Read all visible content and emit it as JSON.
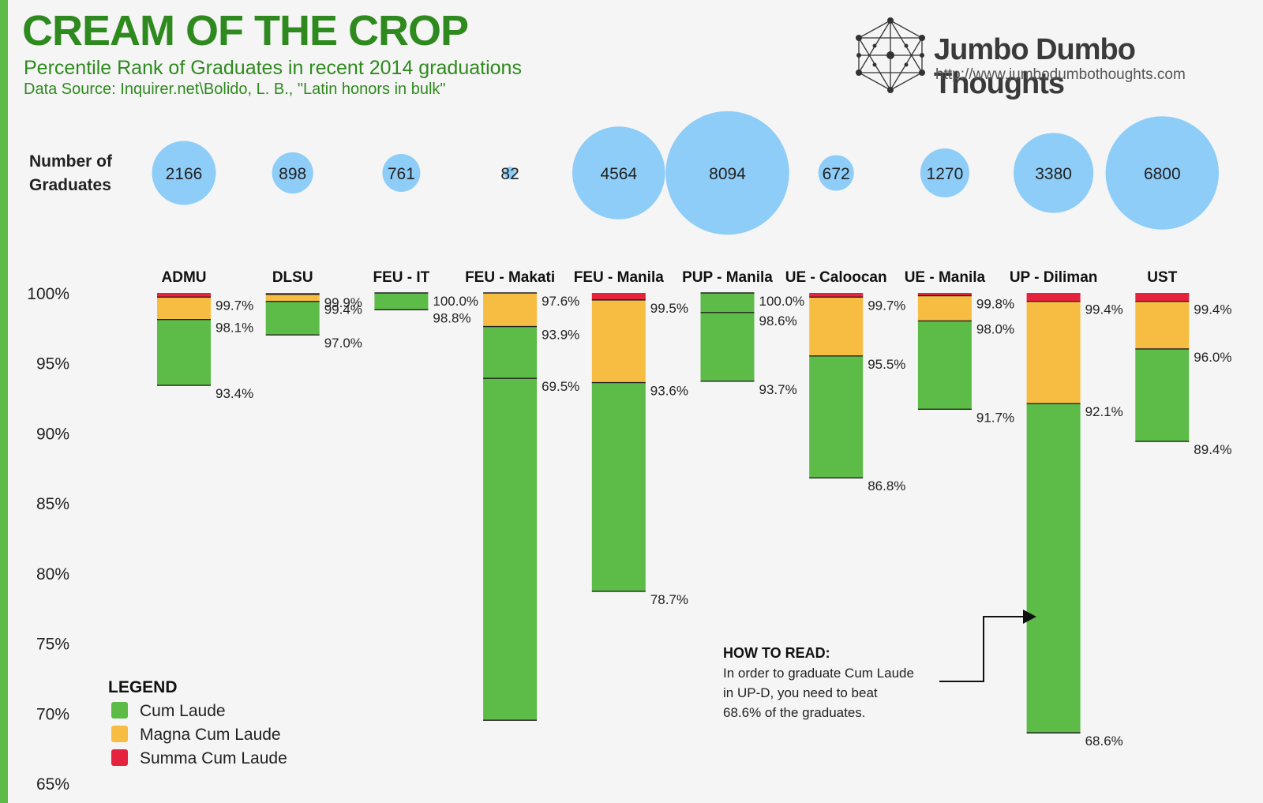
{
  "header": {
    "title": "CREAM OF THE CROP",
    "subtitle": "Percentile Rank of Graduates in recent 2014 graduations",
    "source": "Data Source: Inquirer.net\\Bolido, L. B., \"Latin honors in bulk\""
  },
  "brand": {
    "name": "Jumbo Dumbo Thoughts",
    "url": "http://www.jumbodumbothoughts.com"
  },
  "graduates_label": [
    "Number of",
    "Graduates"
  ],
  "legend": {
    "title": "LEGEND",
    "items": [
      {
        "label": "Cum Laude",
        "color": "#5dbb47"
      },
      {
        "label": "Magna Cum Laude",
        "color": "#f7bd43"
      },
      {
        "label": "Summa Cum Laude",
        "color": "#e5233f"
      }
    ]
  },
  "annotation": {
    "title": "HOW TO READ:",
    "lines": [
      "In order to graduate Cum Laude",
      " in UP-D, you need to beat",
      "68.6% of the graduates."
    ]
  },
  "chart_data": {
    "type": "floating-bar",
    "ylim": [
      65,
      100
    ],
    "yticks": [
      "100%",
      "95%",
      "90%",
      "85%",
      "80%",
      "75%",
      "70%",
      "65%"
    ],
    "bubble_color": "#8ecdf8",
    "schools": [
      {
        "name": "ADMU",
        "graduates": "2166",
        "summa": 99.7,
        "magna": 98.1,
        "cum": 93.4,
        "labels": [
          "99.7%",
          "98.1%",
          "93.4%"
        ]
      },
      {
        "name": "DLSU",
        "graduates": "898",
        "summa": 99.9,
        "magna": 99.4,
        "cum": 97.0,
        "labels": [
          "99.9%",
          "99.4%",
          "97.0%"
        ]
      },
      {
        "name": "FEU - IT",
        "graduates": "761",
        "summa": null,
        "magna": 100.0,
        "cum": 98.8,
        "labels": [
          "100.0%",
          "98.8%"
        ]
      },
      {
        "name": "FEU - Makati",
        "graduates": "82",
        "summa": 100.0,
        "magna": 97.6,
        "cum": 93.9,
        "end": 69.5,
        "labels": [
          "97.6%",
          "93.9%",
          "69.5%"
        ]
      },
      {
        "name": "FEU - Manila",
        "graduates": "4564",
        "summa": 99.5,
        "magna": 93.6,
        "cum": 78.7,
        "labels": [
          "99.5%",
          "93.6%",
          "78.7%"
        ]
      },
      {
        "name": "PUP - Manila",
        "graduates": "8094",
        "summa": null,
        "magna": 100.0,
        "cum": 98.6,
        "end": 93.7,
        "labels": [
          "100.0%",
          "98.6%",
          "93.7%"
        ]
      },
      {
        "name": "UE - Caloocan",
        "graduates": "672",
        "summa": 99.7,
        "magna": 95.5,
        "cum": 86.8,
        "labels": [
          "99.7%",
          "95.5%",
          "86.8%"
        ]
      },
      {
        "name": "UE - Manila",
        "graduates": "1270",
        "summa": 99.8,
        "magna": 98.0,
        "cum": 91.7,
        "labels": [
          "99.8%",
          "98.0%",
          "91.7%"
        ]
      },
      {
        "name": "UP - Diliman",
        "graduates": "3380",
        "summa": 99.4,
        "magna": 92.1,
        "cum": 68.6,
        "labels": [
          "99.4%",
          "92.1%",
          "68.6%"
        ]
      },
      {
        "name": "UST",
        "graduates": "6800",
        "summa": 99.4,
        "magna": 96.0,
        "cum": 89.4,
        "labels": [
          "99.4%",
          "96.0%",
          "89.4%"
        ]
      }
    ]
  }
}
